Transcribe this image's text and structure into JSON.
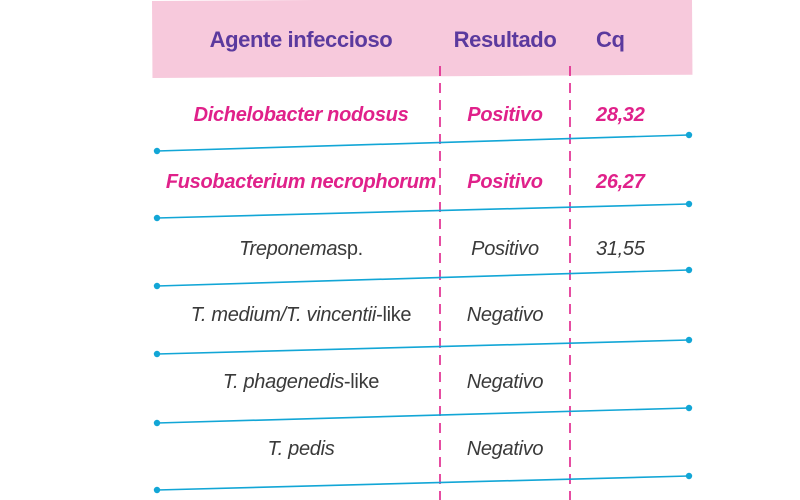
{
  "table": {
    "headers": {
      "agent": "Agente infeccioso",
      "result": "Resultado",
      "cq": "Cq"
    },
    "rows": [
      {
        "agent": "Dichelobacter nodosus",
        "agent_suffix": "",
        "result": "Positivo",
        "cq": "28,32",
        "highlight": true
      },
      {
        "agent": "Fusobacterium necrophorum",
        "agent_suffix": "",
        "result": "Positivo",
        "cq": "26,27",
        "highlight": true
      },
      {
        "agent": "Treponema",
        "agent_suffix": " sp.",
        "result": "Positivo",
        "cq": "31,55",
        "highlight": false
      },
      {
        "agent": "T. medium/T. vincentii",
        "agent_suffix": "-like",
        "result": "Negativo",
        "cq": "",
        "highlight": false
      },
      {
        "agent": "T. phagenedis",
        "agent_suffix": "-like",
        "result": "Negativo",
        "cq": "",
        "highlight": false
      },
      {
        "agent": "T. pedis",
        "agent_suffix": "",
        "result": "Negativo",
        "cq": "",
        "highlight": false
      }
    ]
  },
  "colors": {
    "header_background": "#f7c9dc",
    "header_text": "#5b3a9e",
    "highlight_text": "#e0218a",
    "normal_text": "#3a3a3a",
    "row_line": "#12a6d6",
    "column_divider": "#e0218a"
  }
}
